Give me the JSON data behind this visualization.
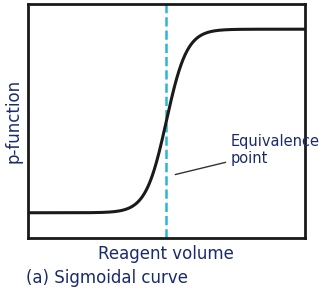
{
  "xlabel": "Reagent volume",
  "ylabel": "p-function",
  "caption": "(a) Sigmoidal curve",
  "curve_color": "#1a1a1a",
  "curve_linewidth": 2.2,
  "dashed_line_color": "#29b6d6",
  "annotation_text": "Equivalence\npoint",
  "annotation_color": "#1a2a6e",
  "xlabel_color": "#1a2a6e",
  "ylabel_color": "#1a2a6e",
  "caption_color": "#1a2a6e",
  "xlim": [
    -4.5,
    4.5
  ],
  "ylim": [
    -2.8,
    2.8
  ],
  "equivalence_x": 0.0,
  "bg_color": "#ffffff",
  "box_color": "#1a1a1a",
  "xlabel_fontsize": 12,
  "ylabel_fontsize": 12,
  "caption_fontsize": 12,
  "annotation_fontsize": 10.5,
  "tanh_scale": 1.5,
  "tanh_amp": 2.2
}
